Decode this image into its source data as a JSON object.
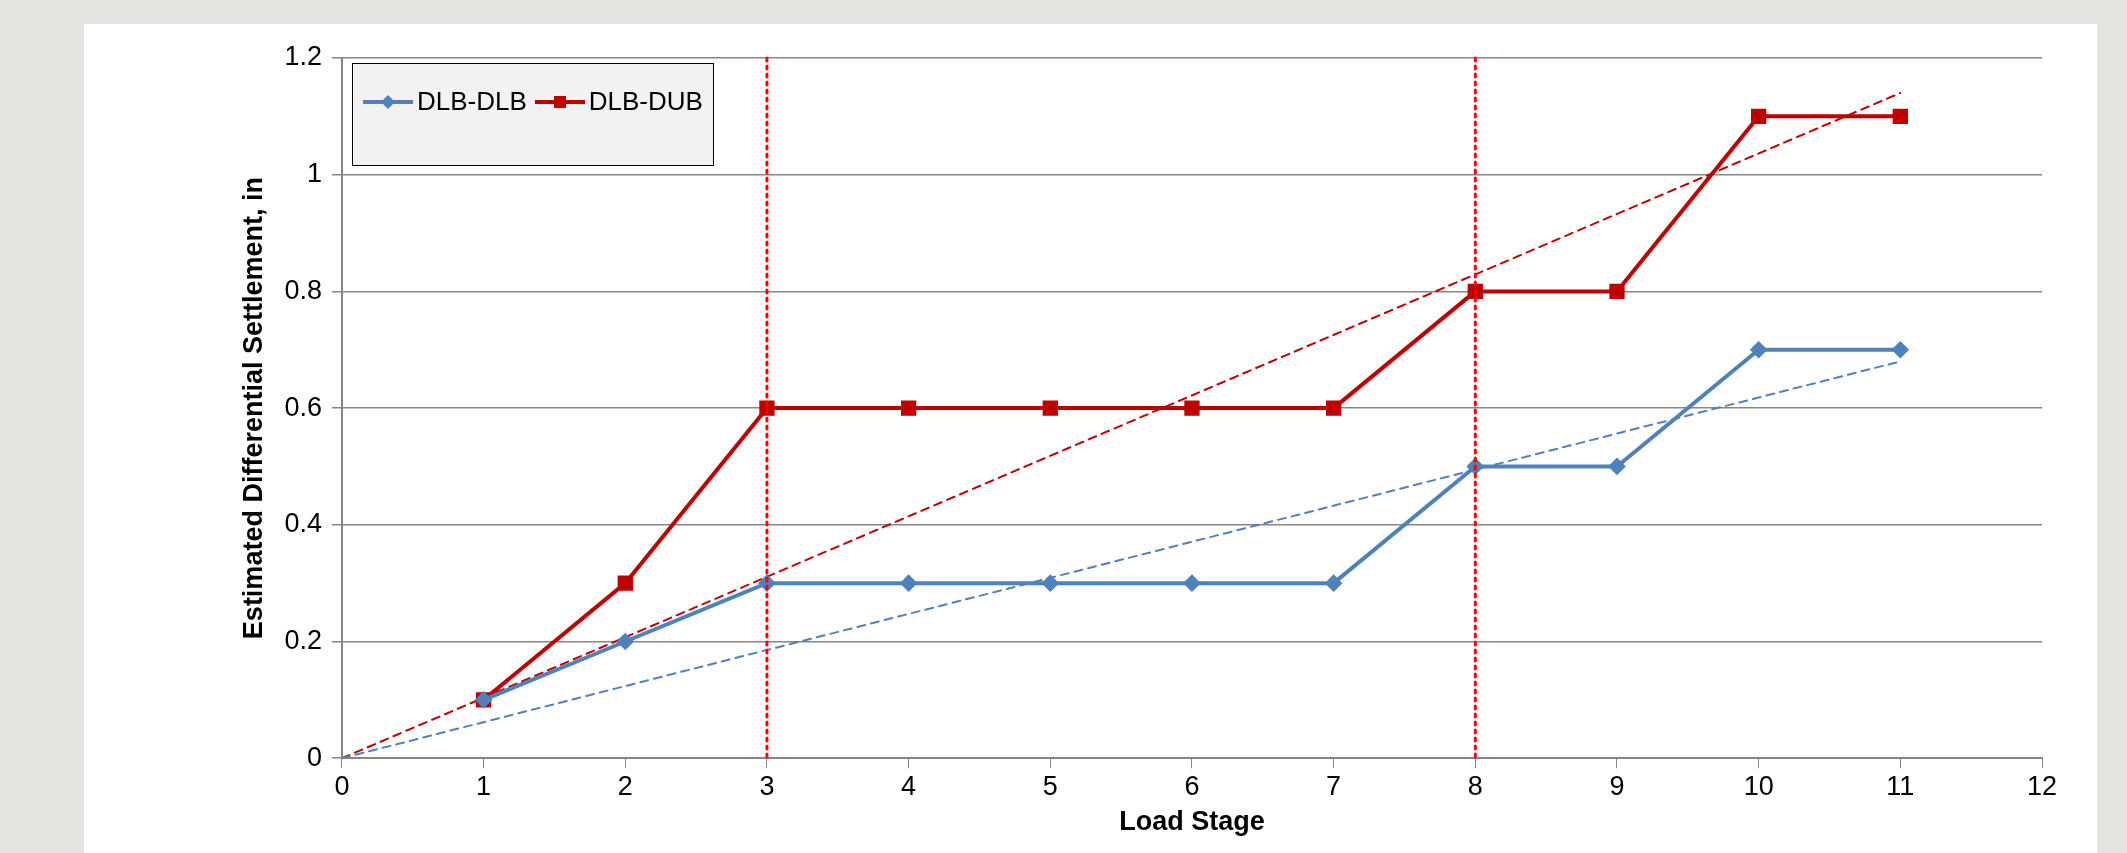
{
  "chart_data": {
    "type": "line",
    "xlabel": "Load Stage",
    "ylabel": "Estimated Differential Settlement, in",
    "xlim": [
      0,
      12
    ],
    "xticks": [
      0,
      1,
      2,
      3,
      4,
      5,
      6,
      7,
      8,
      9,
      10,
      11,
      12
    ],
    "ylim": [
      0,
      1.2
    ],
    "yticks": [
      0,
      0.2,
      0.4,
      0.6,
      0.8,
      1,
      1.2
    ],
    "grid": "y",
    "legend": "top left",
    "series": [
      {
        "name": "DLB-DLB",
        "color": "#4f81bd",
        "marker": "diamond",
        "line_style": "solid",
        "x": [
          1,
          2,
          3,
          4,
          5,
          6,
          7,
          8,
          9,
          10,
          11
        ],
        "values": [
          0.1,
          0.2,
          0.3,
          0.3,
          0.3,
          0.3,
          0.3,
          0.5,
          0.5,
          0.7,
          0.7
        ]
      },
      {
        "name": "DLB-DUB",
        "color": "#c00000",
        "marker": "square",
        "line_style": "solid",
        "x": [
          1,
          2,
          3,
          4,
          5,
          6,
          7,
          8,
          9,
          10,
          11
        ],
        "values": [
          0.1,
          0.3,
          0.6,
          0.6,
          0.6,
          0.6,
          0.6,
          0.8,
          0.8,
          1.1,
          1.1
        ]
      },
      {
        "type": "line",
        "color": "#4f81bd",
        "marker": "none",
        "line_style": "dashed",
        "x": [
          0,
          11
        ],
        "values": [
          0,
          0.68
        ]
      },
      {
        "type": "line",
        "color": "#c00000",
        "marker": "none",
        "line_style": "dashed",
        "x": [
          0,
          11
        ],
        "values": [
          0,
          1.14
        ]
      }
    ],
    "ref_lines": [
      {
        "axis": "x",
        "value": 3,
        "color": "#ff0000",
        "line_style": "dotted"
      },
      {
        "axis": "x",
        "value": 8,
        "color": "#ff0000",
        "line_style": "dotted"
      }
    ]
  }
}
